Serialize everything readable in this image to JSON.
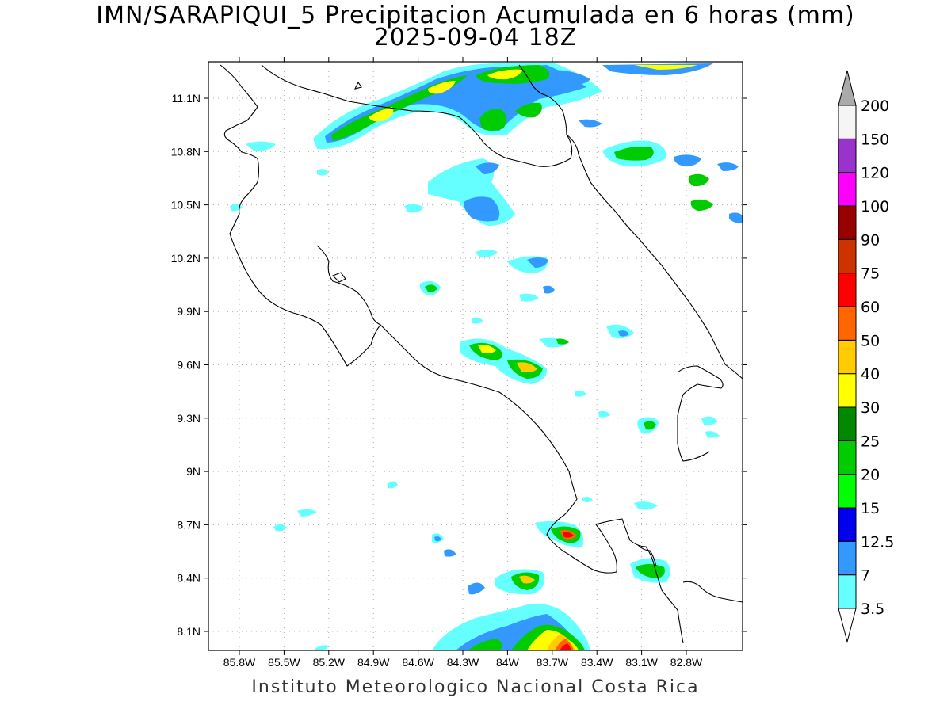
{
  "title": {
    "line1": "IMN/SARAPIQUI_5 Precipitacion Acumulada en 6 horas (mm)",
    "line2": "2025-09-04 18Z"
  },
  "footer": "Instituto Meteorologico Nacional Costa Rica",
  "axes": {
    "lat_ticks": [
      "11.1N",
      "10.8N",
      "10.5N",
      "10.2N",
      "9.9N",
      "9.6N",
      "9.3N",
      "9N",
      "8.7N",
      "8.4N",
      "8.1N"
    ],
    "lon_ticks": [
      "85.8W",
      "85.5W",
      "85.2W",
      "84.9W",
      "84.6W",
      "84.3W",
      "84W",
      "83.7W",
      "83.4W",
      "83.1W",
      "82.8W"
    ]
  },
  "colorbar": {
    "levels": [
      "3.5",
      "7",
      "12.5",
      "15",
      "20",
      "25",
      "30",
      "40",
      "50",
      "60",
      "75",
      "90",
      "100",
      "120",
      "150",
      "200"
    ],
    "colors": [
      "#66ffff",
      "#3399ff",
      "#0000ee",
      "#00ff00",
      "#00cc00",
      "#008800",
      "#ffff00",
      "#ffcc00",
      "#ff6600",
      "#ff0000",
      "#cc3300",
      "#990000",
      "#ff00ff",
      "#9933cc",
      "#f5f5f5"
    ],
    "top_color": "#aaaaaa",
    "bottom_color": "#ffffff"
  }
}
